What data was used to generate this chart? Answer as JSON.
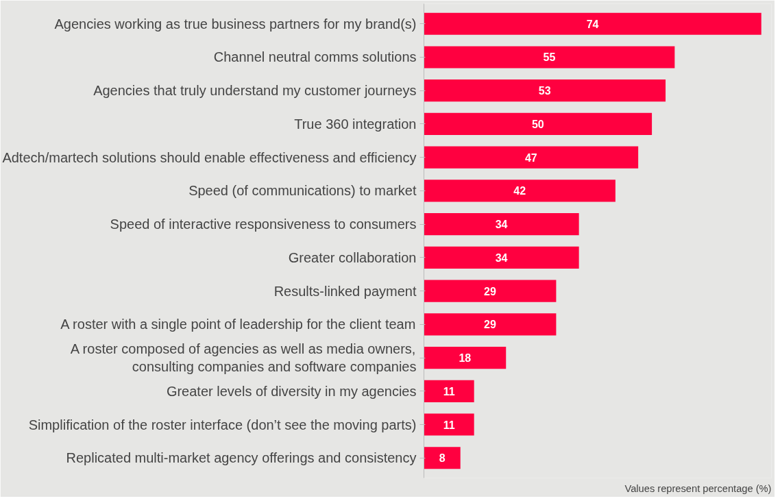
{
  "chart_data": {
    "type": "bar",
    "orientation": "horizontal",
    "categories": [
      "Agencies working as true business partners for my brand(s)",
      "Channel neutral comms solutions",
      "Agencies that truly understand my customer journeys",
      "True 360 integration",
      "Adtech/martech solutions should enable effectiveness and efficiency",
      "Speed (of communications) to market",
      "Speed of interactive responsiveness to consumers",
      "Greater collaboration",
      "Results-linked payment",
      "A roster with a single point of leadership for the client team",
      "A roster composed of agencies as well as media owners,\nconsulting companies and software companies",
      "Greater levels of diversity in my agencies",
      "Simplification of the roster interface (don’t see the moving parts)",
      "Replicated multi-market agency offerings and consistency"
    ],
    "values": [
      74,
      55,
      53,
      50,
      47,
      42,
      34,
      34,
      29,
      29,
      18,
      11,
      11,
      8
    ],
    "color": "#ff0040",
    "data_labels": true,
    "annotations": [
      "Values represent percentage (%)"
    ]
  }
}
